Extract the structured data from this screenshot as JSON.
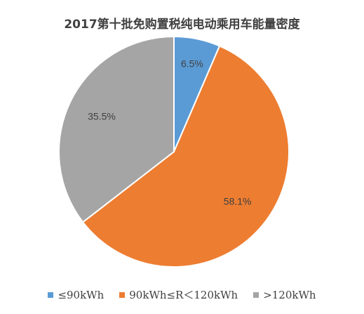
{
  "chart_data": {
    "type": "pie",
    "title": "2017第十批免购置税纯电动乘用车能量密度",
    "categories": [
      "≤90kWh",
      "90kWh≤R＜120kWh",
      ">120kWh"
    ],
    "values": [
      6.5,
      58.1,
      35.5
    ],
    "labels": [
      "6.5%",
      "58.1%",
      "35.5%"
    ],
    "colors": [
      "#5B9BD5",
      "#ED7D31",
      "#A5A5A5"
    ],
    "legend_position": "bottom"
  }
}
